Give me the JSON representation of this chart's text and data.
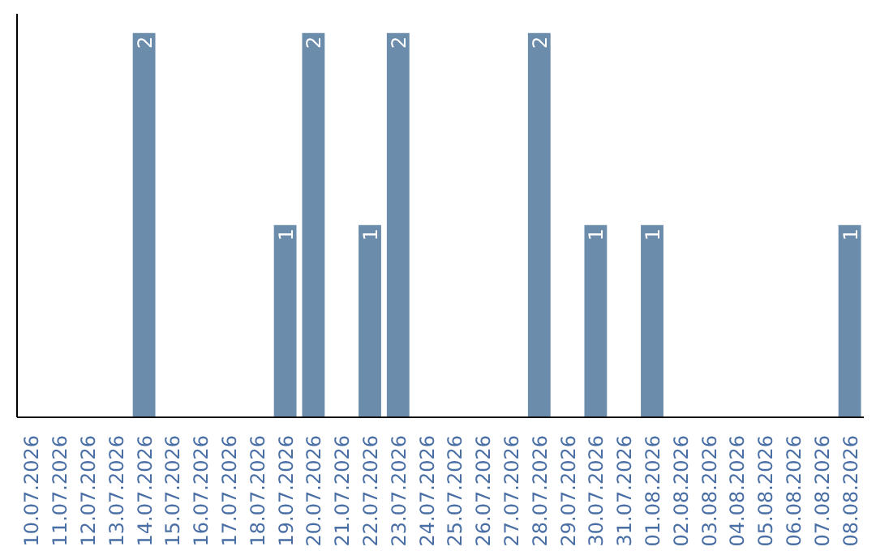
{
  "chart_data": {
    "type": "bar",
    "categories": [
      "10.07.2026",
      "11.07.2026",
      "12.07.2026",
      "13.07.2026",
      "14.07.2026",
      "15.07.2026",
      "16.07.2026",
      "17.07.2026",
      "18.07.2026",
      "19.07.2026",
      "20.07.2026",
      "21.07.2026",
      "22.07.2026",
      "23.07.2026",
      "24.07.2026",
      "25.07.2026",
      "26.07.2026",
      "27.07.2026",
      "28.07.2026",
      "29.07.2026",
      "30.07.2026",
      "31.07.2026",
      "01.08.2026",
      "02.08.2026",
      "03.08.2026",
      "04.08.2026",
      "05.08.2026",
      "06.08.2026",
      "07.08.2026",
      "08.08.2026"
    ],
    "values": [
      0,
      0,
      0,
      0,
      2,
      0,
      0,
      0,
      0,
      1,
      2,
      0,
      1,
      2,
      0,
      0,
      0,
      0,
      2,
      0,
      1,
      0,
      1,
      0,
      0,
      0,
      0,
      0,
      0,
      1
    ],
    "value_labels": [
      null,
      null,
      null,
      null,
      "2",
      null,
      null,
      null,
      null,
      "1",
      "2",
      null,
      "1",
      "2",
      null,
      null,
      null,
      null,
      "2",
      null,
      "1",
      null,
      "1",
      null,
      null,
      null,
      null,
      null,
      null,
      "1"
    ],
    "color": "#6b8cab",
    "grid": false,
    "tick_labels": "x"
  }
}
